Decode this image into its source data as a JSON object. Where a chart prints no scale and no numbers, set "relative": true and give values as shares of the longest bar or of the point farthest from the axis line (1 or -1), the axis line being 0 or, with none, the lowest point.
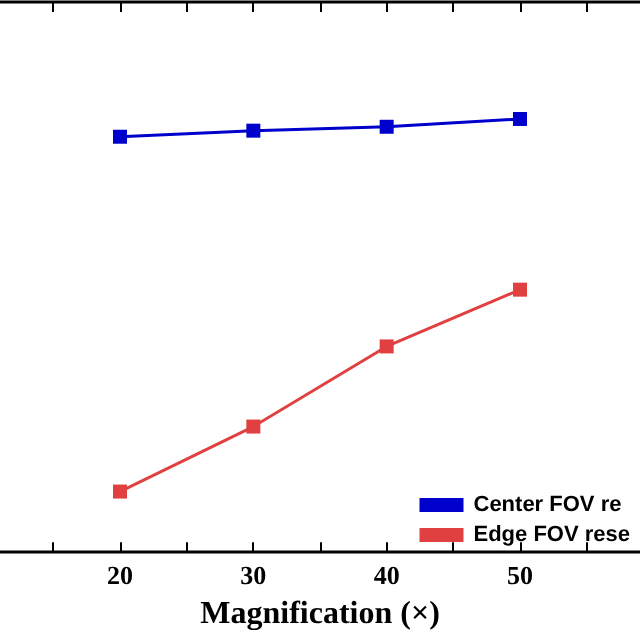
{
  "chart_data": {
    "type": "line",
    "xlabel": "Magnification (×)",
    "relative": true,
    "x": [
      20,
      30,
      40,
      50
    ],
    "xlim": [
      11,
      59
    ],
    "xticks": [
      {
        "value": 15,
        "label": null
      },
      20,
      {
        "value": 25,
        "label": null
      },
      30,
      {
        "value": 35,
        "label": null
      },
      40,
      {
        "value": 45,
        "label": null
      },
      50,
      {
        "value": 55,
        "label": null
      }
    ],
    "series": [
      {
        "name": "Center FOV re",
        "color": "#0000cc",
        "values": [
          0.959,
          0.973,
          0.982,
          1
        ]
      },
      {
        "name": "Edge FOV rese",
        "color": "#e04040",
        "values": [
          0.14,
          0.29,
          0.475,
          0.606
        ]
      }
    ],
    "marker": "square",
    "line_style": "solid",
    "legend": "bottom right",
    "grid": false
  }
}
